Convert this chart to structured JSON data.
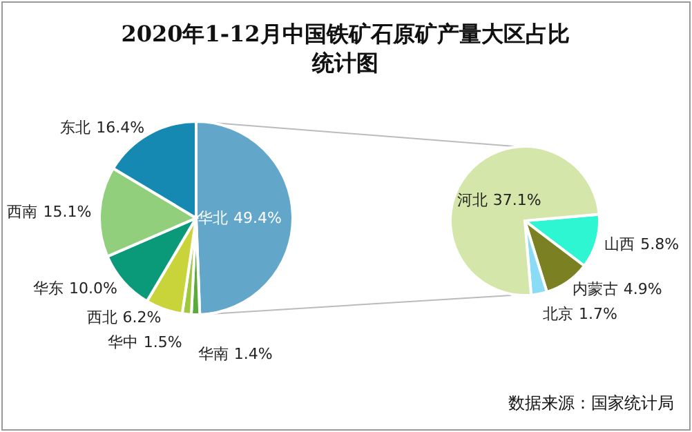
{
  "chart_data": [
    {
      "type": "pie",
      "title": "2020年1-12月中国铁矿石原矿产量大区占比统计图",
      "categories": [
        "华北",
        "华南",
        "华中",
        "西北",
        "华东",
        "西南",
        "东北"
      ],
      "values": [
        49.4,
        1.4,
        1.5,
        6.2,
        10.0,
        15.1,
        16.4
      ],
      "colors": [
        "#62a6c9",
        "#5aaa3c",
        "#9fc83c",
        "#c9d43a",
        "#0b9a79",
        "#91cf7c",
        "#1589b2"
      ],
      "value_labels": [
        "49.4%",
        "1.4%",
        "1.5%",
        "6.2%",
        "10.0%",
        "15.1%",
        "16.4%"
      ],
      "annotations": [
        "数据来源：国家统计局"
      ]
    },
    {
      "type": "pie",
      "categories": [
        "山西",
        "内蒙古",
        "北京",
        "河北"
      ],
      "values": [
        5.8,
        4.9,
        1.7,
        37.1
      ],
      "colors": [
        "#2ef6d2",
        "#7b8022",
        "#8adcf6",
        "#d4e6a9"
      ],
      "value_labels": [
        "5.8%",
        "4.9%",
        "1.7%",
        "37.1%"
      ]
    }
  ]
}
